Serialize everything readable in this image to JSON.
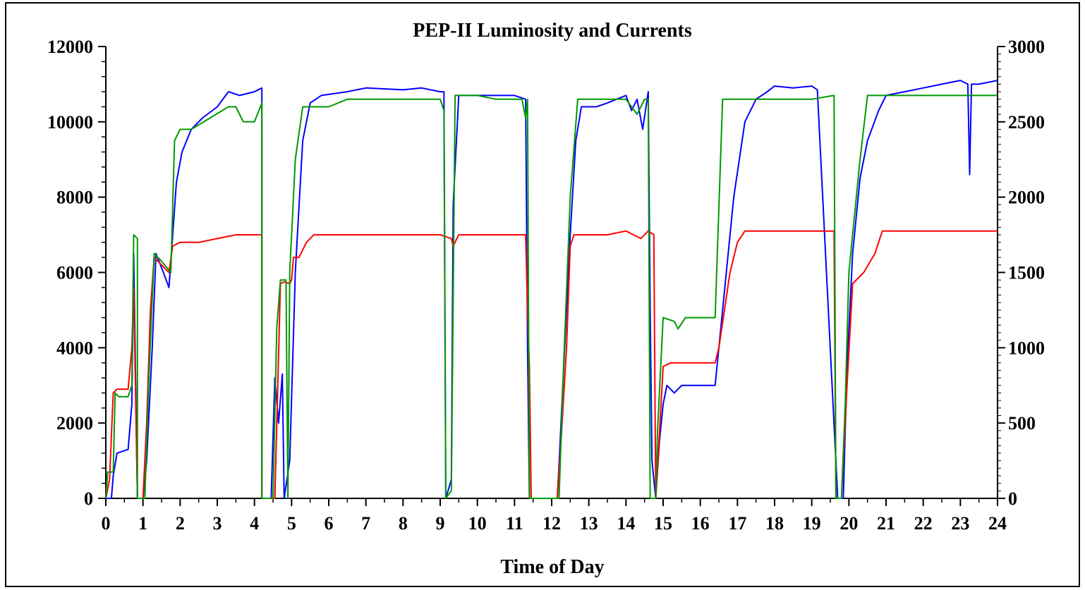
{
  "chart_data": {
    "type": "line",
    "title": "PEP-II Luminosity and Currents",
    "xlabel": "Time of Day",
    "xlim": [
      0,
      24
    ],
    "x_ticks": [
      "0",
      "1",
      "2",
      "3",
      "4",
      "5",
      "6",
      "7",
      "8",
      "9",
      "10",
      "11",
      "12",
      "13",
      "14",
      "15",
      "16",
      "17",
      "18",
      "19",
      "20",
      "21",
      "22",
      "23",
      "24"
    ],
    "left_axis": {
      "ylim": [
        0,
        12000
      ],
      "ticks": [
        "0",
        "2000",
        "4000",
        "6000",
        "8000",
        "10000",
        "12000"
      ]
    },
    "right_axis": {
      "ylim": [
        0,
        3000
      ],
      "ticks": [
        "0",
        "500",
        "1000",
        "1500",
        "2000",
        "2500",
        "3000"
      ]
    },
    "grid": false,
    "series": [
      {
        "color": "#0000ff",
        "axis": "left",
        "points": [
          [
            0.0,
            0
          ],
          [
            0.15,
            0
          ],
          [
            0.2,
            600
          ],
          [
            0.3,
            1200
          ],
          [
            0.6,
            1300
          ],
          [
            0.7,
            2500
          ],
          [
            0.75,
            6500
          ],
          [
            0.85,
            0
          ],
          [
            1.0,
            0
          ],
          [
            1.1,
            1000
          ],
          [
            1.25,
            4000
          ],
          [
            1.35,
            6500
          ],
          [
            1.55,
            6000
          ],
          [
            1.7,
            5600
          ],
          [
            1.8,
            7000
          ],
          [
            1.9,
            8400
          ],
          [
            2.05,
            9200
          ],
          [
            2.3,
            9800
          ],
          [
            2.6,
            10100
          ],
          [
            3.0,
            10400
          ],
          [
            3.3,
            10800
          ],
          [
            3.6,
            10700
          ],
          [
            4.0,
            10800
          ],
          [
            4.2,
            10900
          ],
          [
            4.2,
            0
          ],
          [
            4.45,
            0
          ],
          [
            4.55,
            3200
          ],
          [
            4.65,
            2000
          ],
          [
            4.75,
            3300
          ],
          [
            4.8,
            0
          ],
          [
            4.95,
            1000
          ],
          [
            5.1,
            6000
          ],
          [
            5.3,
            9500
          ],
          [
            5.5,
            10500
          ],
          [
            5.8,
            10700
          ],
          [
            6.5,
            10800
          ],
          [
            7.0,
            10900
          ],
          [
            8.0,
            10850
          ],
          [
            8.5,
            10900
          ],
          [
            9.0,
            10800
          ],
          [
            9.1,
            10800
          ],
          [
            9.15,
            0
          ],
          [
            9.3,
            500
          ],
          [
            9.35,
            7800
          ],
          [
            9.5,
            10700
          ],
          [
            10.0,
            10700
          ],
          [
            10.5,
            10700
          ],
          [
            11.0,
            10700
          ],
          [
            11.3,
            10600
          ],
          [
            11.35,
            4000
          ],
          [
            11.4,
            0
          ],
          [
            12.15,
            0
          ],
          [
            12.2,
            900
          ],
          [
            12.3,
            3000
          ],
          [
            12.5,
            7000
          ],
          [
            12.65,
            9500
          ],
          [
            12.8,
            10400
          ],
          [
            13.2,
            10400
          ],
          [
            13.5,
            10500
          ],
          [
            14.0,
            10700
          ],
          [
            14.15,
            10300
          ],
          [
            14.3,
            10600
          ],
          [
            14.45,
            9800
          ],
          [
            14.6,
            10800
          ],
          [
            14.65,
            5000
          ],
          [
            14.7,
            1000
          ],
          [
            14.8,
            0
          ],
          [
            14.9,
            1500
          ],
          [
            15.0,
            2500
          ],
          [
            15.1,
            3000
          ],
          [
            15.3,
            2800
          ],
          [
            15.5,
            3000
          ],
          [
            16.0,
            3000
          ],
          [
            16.4,
            3000
          ],
          [
            16.6,
            5000
          ],
          [
            16.9,
            8000
          ],
          [
            17.2,
            10000
          ],
          [
            17.5,
            10600
          ],
          [
            17.8,
            10800
          ],
          [
            18.0,
            10950
          ],
          [
            18.5,
            10900
          ],
          [
            19.0,
            10950
          ],
          [
            19.15,
            10850
          ],
          [
            19.7,
            0
          ],
          [
            19.85,
            0
          ],
          [
            19.95,
            3500
          ],
          [
            20.1,
            6500
          ],
          [
            20.3,
            8500
          ],
          [
            20.5,
            9500
          ],
          [
            20.8,
            10300
          ],
          [
            21.0,
            10700
          ],
          [
            21.5,
            10800
          ],
          [
            22.0,
            10900
          ],
          [
            22.5,
            11000
          ],
          [
            23.0,
            11100
          ],
          [
            23.2,
            11000
          ],
          [
            23.25,
            8600
          ],
          [
            23.3,
            11000
          ],
          [
            23.5,
            11000
          ],
          [
            24.0,
            11100
          ]
        ]
      },
      {
        "color": "#ff0000",
        "axis": "left",
        "points": [
          [
            0.0,
            0
          ],
          [
            0.1,
            500
          ],
          [
            0.2,
            2800
          ],
          [
            0.3,
            2900
          ],
          [
            0.6,
            2900
          ],
          [
            0.7,
            4000
          ],
          [
            0.75,
            5600
          ],
          [
            0.85,
            0
          ],
          [
            1.0,
            0
          ],
          [
            1.1,
            2000
          ],
          [
            1.2,
            5000
          ],
          [
            1.3,
            6400
          ],
          [
            1.5,
            6200
          ],
          [
            1.7,
            6000
          ],
          [
            1.8,
            6700
          ],
          [
            2.0,
            6800
          ],
          [
            2.5,
            6800
          ],
          [
            3.0,
            6900
          ],
          [
            3.5,
            7000
          ],
          [
            4.2,
            7000
          ],
          [
            4.2,
            0
          ],
          [
            4.55,
            0
          ],
          [
            4.7,
            5700
          ],
          [
            4.8,
            5750
          ],
          [
            4.95,
            5700
          ],
          [
            5.0,
            5800
          ],
          [
            5.05,
            6400
          ],
          [
            5.2,
            6400
          ],
          [
            5.4,
            6800
          ],
          [
            5.6,
            7000
          ],
          [
            6.0,
            7000
          ],
          [
            7.0,
            7000
          ],
          [
            8.0,
            7000
          ],
          [
            9.0,
            7000
          ],
          [
            9.3,
            6900
          ],
          [
            9.35,
            6700
          ],
          [
            9.5,
            7000
          ],
          [
            10.0,
            7000
          ],
          [
            11.3,
            7000
          ],
          [
            11.35,
            5000
          ],
          [
            11.4,
            3500
          ],
          [
            11.45,
            0
          ],
          [
            12.15,
            0
          ],
          [
            12.25,
            1500
          ],
          [
            12.4,
            4000
          ],
          [
            12.5,
            6700
          ],
          [
            12.6,
            7000
          ],
          [
            13.0,
            7000
          ],
          [
            13.5,
            7000
          ],
          [
            14.0,
            7100
          ],
          [
            14.2,
            7000
          ],
          [
            14.4,
            6900
          ],
          [
            14.6,
            7100
          ],
          [
            14.75,
            7000
          ],
          [
            14.8,
            0
          ],
          [
            14.9,
            1700
          ],
          [
            15.0,
            3500
          ],
          [
            15.2,
            3600
          ],
          [
            16.0,
            3600
          ],
          [
            16.4,
            3600
          ],
          [
            16.5,
            4000
          ],
          [
            16.8,
            6000
          ],
          [
            17.0,
            6800
          ],
          [
            17.2,
            7100
          ],
          [
            18.0,
            7100
          ],
          [
            19.0,
            7100
          ],
          [
            19.6,
            7100
          ],
          [
            19.65,
            0
          ],
          [
            19.8,
            0
          ],
          [
            19.95,
            3000
          ],
          [
            20.1,
            5700
          ],
          [
            20.4,
            6000
          ],
          [
            20.7,
            6500
          ],
          [
            20.9,
            7100
          ],
          [
            21.5,
            7100
          ],
          [
            22.0,
            7100
          ],
          [
            22.5,
            7100
          ],
          [
            23.0,
            7100
          ],
          [
            24.0,
            7100
          ]
        ]
      },
      {
        "color": "#009900",
        "axis": "left",
        "points": [
          [
            0.0,
            0
          ],
          [
            0.05,
            700
          ],
          [
            0.2,
            700
          ],
          [
            0.25,
            2800
          ],
          [
            0.35,
            2700
          ],
          [
            0.6,
            2700
          ],
          [
            0.7,
            3000
          ],
          [
            0.75,
            7000
          ],
          [
            0.85,
            6900
          ],
          [
            0.85,
            0
          ],
          [
            1.05,
            0
          ],
          [
            1.15,
            3000
          ],
          [
            1.3,
            6500
          ],
          [
            1.5,
            6300
          ],
          [
            1.75,
            6000
          ],
          [
            1.85,
            9500
          ],
          [
            2.0,
            9800
          ],
          [
            2.3,
            9800
          ],
          [
            2.8,
            10100
          ],
          [
            3.3,
            10400
          ],
          [
            3.5,
            10400
          ],
          [
            3.7,
            10000
          ],
          [
            4.0,
            10000
          ],
          [
            4.2,
            10500
          ],
          [
            4.2,
            0
          ],
          [
            4.5,
            0
          ],
          [
            4.6,
            4500
          ],
          [
            4.7,
            5800
          ],
          [
            4.85,
            5800
          ],
          [
            4.9,
            0
          ],
          [
            4.95,
            6000
          ],
          [
            5.1,
            9000
          ],
          [
            5.3,
            10400
          ],
          [
            6.0,
            10400
          ],
          [
            6.5,
            10600
          ],
          [
            7.0,
            10600
          ],
          [
            8.0,
            10600
          ],
          [
            9.0,
            10600
          ],
          [
            9.1,
            10300
          ],
          [
            9.15,
            0
          ],
          [
            9.3,
            200
          ],
          [
            9.4,
            10700
          ],
          [
            10.0,
            10700
          ],
          [
            10.5,
            10600
          ],
          [
            11.2,
            10600
          ],
          [
            11.3,
            10100
          ],
          [
            11.35,
            10600
          ],
          [
            11.4,
            0
          ],
          [
            12.2,
            0
          ],
          [
            12.3,
            3000
          ],
          [
            12.5,
            8000
          ],
          [
            12.7,
            10600
          ],
          [
            13.5,
            10600
          ],
          [
            14.0,
            10600
          ],
          [
            14.3,
            10200
          ],
          [
            14.5,
            10600
          ],
          [
            14.6,
            10600
          ],
          [
            14.65,
            0
          ],
          [
            14.8,
            0
          ],
          [
            14.85,
            1800
          ],
          [
            15.0,
            4800
          ],
          [
            15.3,
            4700
          ],
          [
            15.4,
            4500
          ],
          [
            15.6,
            4800
          ],
          [
            16.0,
            4800
          ],
          [
            16.4,
            4800
          ],
          [
            16.6,
            10600
          ],
          [
            17.0,
            10600
          ],
          [
            18.0,
            10600
          ],
          [
            19.0,
            10600
          ],
          [
            19.6,
            10700
          ],
          [
            19.65,
            0
          ],
          [
            19.8,
            0
          ],
          [
            19.9,
            2500
          ],
          [
            20.0,
            6000
          ],
          [
            20.3,
            9000
          ],
          [
            20.5,
            10700
          ],
          [
            21.0,
            10700
          ],
          [
            22.0,
            10700
          ],
          [
            23.0,
            10700
          ],
          [
            24.0,
            10700
          ]
        ]
      }
    ]
  }
}
